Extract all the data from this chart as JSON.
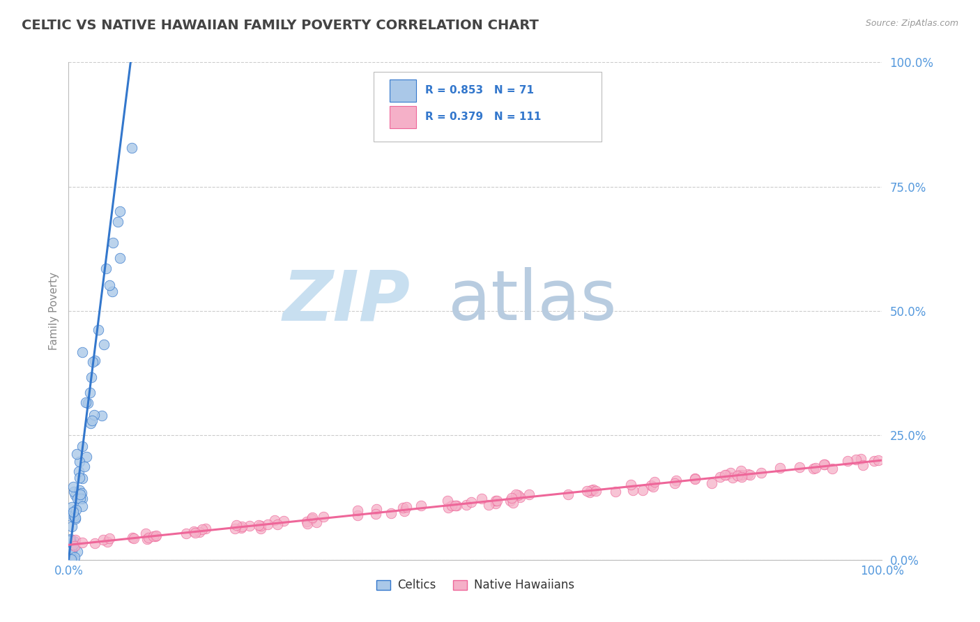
{
  "title": "CELTIC VS NATIVE HAWAIIAN FAMILY POVERTY CORRELATION CHART",
  "source": "Source: ZipAtlas.com",
  "ylabel": "Family Poverty",
  "xlim": [
    0,
    1
  ],
  "ylim": [
    0,
    1
  ],
  "xtick_labels": [
    "0.0%",
    "100.0%"
  ],
  "ytick_positions": [
    0.0,
    0.25,
    0.5,
    0.75,
    1.0
  ],
  "ytick_labels": [
    "0.0%",
    "25.0%",
    "50.0%",
    "75.0%",
    "100.0%"
  ],
  "celtics_R": 0.853,
  "celtics_N": 71,
  "hawaiians_R": 0.379,
  "hawaiians_N": 111,
  "celtics_color": "#aac8e8",
  "hawaiians_color": "#f5b0c8",
  "celtics_line_color": "#3377cc",
  "hawaiians_line_color": "#ee6699",
  "legend_label_celtics": "Celtics",
  "legend_label_hawaiians": "Native Hawaiians",
  "title_color": "#444444",
  "tick_color": "#5599dd",
  "watermark_zip_color": "#c8dff0",
  "watermark_atlas_color": "#b8cce0",
  "background_color": "#ffffff",
  "grid_color": "#cccccc",
  "celtics_seed": 42,
  "hawaiians_seed": 99
}
